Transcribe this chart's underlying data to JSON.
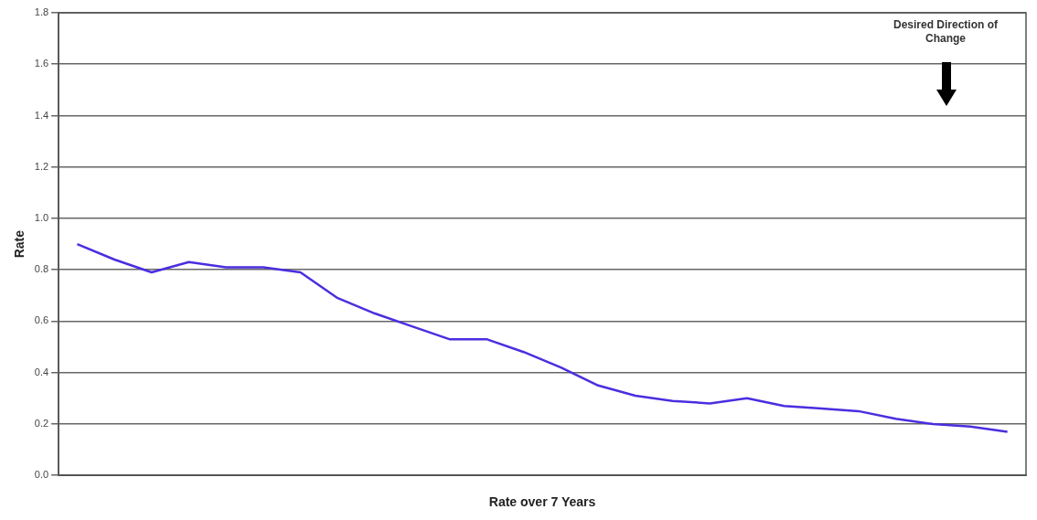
{
  "chart_data": {
    "type": "line",
    "xlabel": "Rate over 7 Years",
    "ylabel": "Rate",
    "categories": [
      null,
      null,
      null,
      null,
      null,
      null,
      null,
      null,
      null,
      null,
      null,
      null,
      null,
      null,
      null,
      null,
      null,
      null,
      null,
      null,
      null,
      null,
      null,
      null,
      null,
      null
    ],
    "series": [
      {
        "color": "#4b2ee0",
        "values": [
          0.9,
          0.84,
          0.79,
          0.83,
          0.81,
          0.81,
          0.79,
          0.69,
          0.63,
          0.58,
          0.53,
          0.53,
          0.48,
          0.42,
          0.35,
          0.31,
          0.29,
          0.28,
          0.3,
          0.27,
          0.26,
          0.25,
          0.22,
          0.2,
          0.19,
          0.17
        ]
      }
    ],
    "ylim": [
      0,
      1.8
    ],
    "yticks": [
      {
        "value": 0,
        "label": "0.0"
      },
      {
        "value": 0.2,
        "label": "0.2"
      },
      {
        "value": 0.4,
        "label": "0.4"
      },
      {
        "value": 0.6,
        "label": "0.6"
      },
      {
        "value": 0.8,
        "label": "0.8"
      },
      {
        "value": 1,
        "label": "1.0"
      },
      {
        "value": 1.2,
        "label": "1.2"
      },
      {
        "value": 1.4,
        "label": "1.4"
      },
      {
        "value": 1.6,
        "label": "1.6"
      },
      {
        "value": 1.8,
        "label": "1.8"
      }
    ],
    "tick_labels": "y",
    "grid": "y",
    "legend": false,
    "marker": "none",
    "line_style": "solid",
    "annotations": [
      "Desired Direction of Change"
    ]
  }
}
